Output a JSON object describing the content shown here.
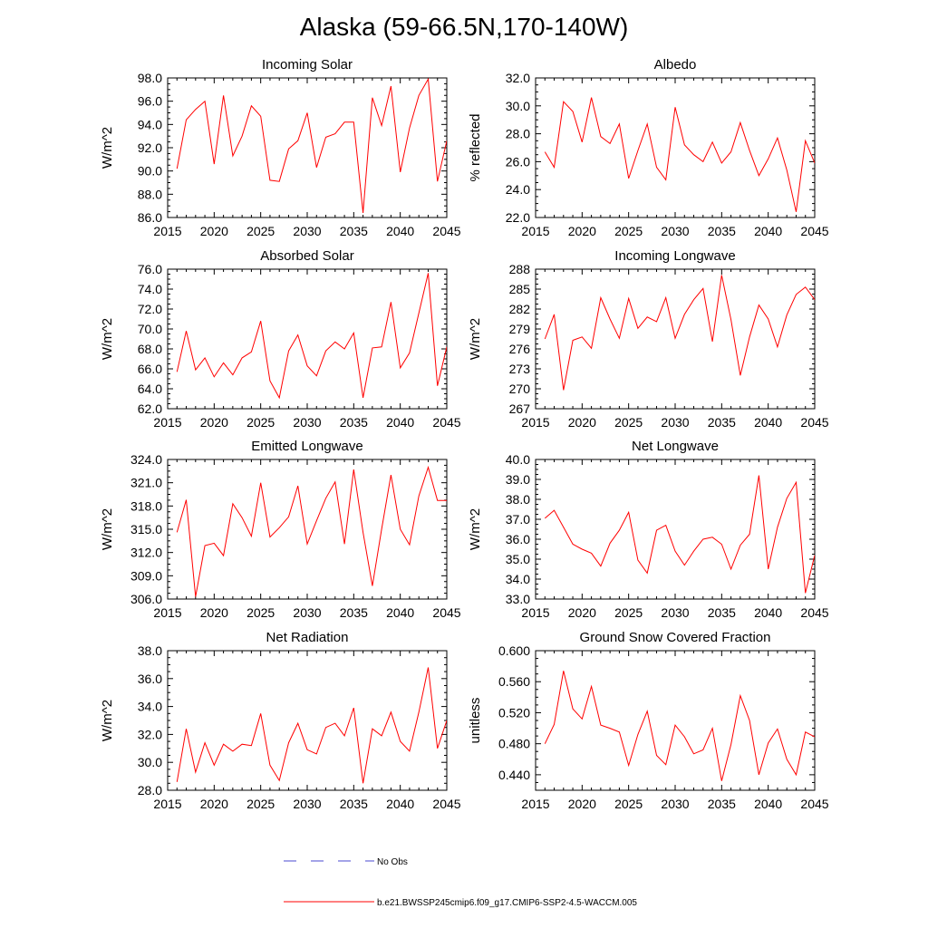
{
  "title": "Alaska (59-66.5N,170-140W)",
  "legend": {
    "obs_label": "No Obs",
    "obs_color": "#4a4ad0",
    "model_label": "b.e21.BWSSP245cmip6.f09_g17.CMIP6-SSP2-4.5-WACCM.005",
    "model_color": "#ff0000"
  },
  "chart_data": [
    {
      "type": "line",
      "title": "Incoming Solar",
      "ylabel": "W/m^2",
      "xlim": [
        2015,
        2045
      ],
      "ylim": [
        86,
        98
      ],
      "yticks": [
        "86.0",
        "88.0",
        "90.0",
        "92.0",
        "94.0",
        "96.0",
        "98.0"
      ],
      "xticks": [
        "2015",
        "2020",
        "2025",
        "2030",
        "2035",
        "2040",
        "2045"
      ],
      "x": [
        2016,
        2017,
        2018,
        2019,
        2020,
        2021,
        2022,
        2023,
        2024,
        2025,
        2026,
        2027,
        2028,
        2029,
        2030,
        2031,
        2032,
        2033,
        2034,
        2035,
        2036,
        2037,
        2038,
        2039,
        2040,
        2041,
        2042,
        2043,
        2044,
        2045
      ],
      "values": [
        90.2,
        94.4,
        95.3,
        96.0,
        90.6,
        96.5,
        91.3,
        93.0,
        95.6,
        94.7,
        89.2,
        89.1,
        91.9,
        92.6,
        95.0,
        90.3,
        92.9,
        93.2,
        94.2,
        94.2,
        86.4,
        96.3,
        93.9,
        97.3,
        89.9,
        93.7,
        96.5,
        97.9,
        89.1,
        92.6
      ]
    },
    {
      "type": "line",
      "title": "Albedo",
      "ylabel": "% reflected",
      "xlim": [
        2015,
        2045
      ],
      "ylim": [
        22,
        32
      ],
      "yticks": [
        "22.0",
        "24.0",
        "26.0",
        "28.0",
        "30.0",
        "32.0"
      ],
      "xticks": [
        "2015",
        "2020",
        "2025",
        "2030",
        "2035",
        "2040",
        "2045"
      ],
      "x": [
        2016,
        2017,
        2018,
        2019,
        2020,
        2021,
        2022,
        2023,
        2024,
        2025,
        2026,
        2027,
        2028,
        2029,
        2030,
        2031,
        2032,
        2033,
        2034,
        2035,
        2036,
        2037,
        2038,
        2039,
        2040,
        2041,
        2042,
        2043,
        2044,
        2045
      ],
      "values": [
        26.7,
        25.6,
        30.3,
        29.6,
        27.4,
        30.6,
        27.8,
        27.3,
        28.7,
        24.8,
        26.8,
        28.7,
        25.6,
        24.7,
        29.9,
        27.2,
        26.5,
        26.0,
        27.4,
        25.9,
        26.7,
        28.8,
        26.8,
        25.0,
        26.2,
        27.7,
        25.4,
        22.4,
        27.5,
        25.9
      ]
    },
    {
      "type": "line",
      "title": "Absorbed Solar",
      "ylabel": "W/m^2",
      "xlim": [
        2015,
        2045
      ],
      "ylim": [
        62,
        76
      ],
      "yticks": [
        "62.0",
        "64.0",
        "66.0",
        "68.0",
        "70.0",
        "72.0",
        "74.0",
        "76.0"
      ],
      "xticks": [
        "2015",
        "2020",
        "2025",
        "2030",
        "2035",
        "2040",
        "2045"
      ],
      "x": [
        2016,
        2017,
        2018,
        2019,
        2020,
        2021,
        2022,
        2023,
        2024,
        2025,
        2026,
        2027,
        2028,
        2029,
        2030,
        2031,
        2032,
        2033,
        2034,
        2035,
        2036,
        2037,
        2038,
        2039,
        2040,
        2041,
        2042,
        2043,
        2044,
        2045
      ],
      "values": [
        65.7,
        69.8,
        65.9,
        67.1,
        65.2,
        66.6,
        65.4,
        67.1,
        67.7,
        70.8,
        64.8,
        63.1,
        67.8,
        69.4,
        66.3,
        65.3,
        67.8,
        68.7,
        68.0,
        69.6,
        63.1,
        68.1,
        68.2,
        72.7,
        66.1,
        67.6,
        71.6,
        75.6,
        64.3,
        68.2
      ]
    },
    {
      "type": "line",
      "title": "Incoming Longwave",
      "ylabel": "W/m^2",
      "xlim": [
        2015,
        2045
      ],
      "ylim": [
        267,
        288
      ],
      "yticks": [
        "267",
        "270",
        "273",
        "276",
        "279",
        "282",
        "285",
        "288"
      ],
      "xticks": [
        "2015",
        "2020",
        "2025",
        "2030",
        "2035",
        "2040",
        "2045"
      ],
      "x": [
        2016,
        2017,
        2018,
        2019,
        2020,
        2021,
        2022,
        2023,
        2024,
        2025,
        2026,
        2027,
        2028,
        2029,
        2030,
        2031,
        2032,
        2033,
        2034,
        2035,
        2036,
        2037,
        2038,
        2039,
        2040,
        2041,
        2042,
        2043,
        2044,
        2045
      ],
      "values": [
        277.5,
        281.2,
        269.8,
        277.3,
        277.8,
        276.1,
        283.7,
        280.5,
        277.6,
        283.6,
        279.1,
        280.8,
        280.1,
        283.7,
        277.6,
        281.2,
        283.4,
        285.1,
        277.1,
        287.1,
        280.4,
        272.0,
        277.8,
        282.6,
        280.5,
        276.3,
        281.1,
        284.2,
        285.3,
        283.4
      ]
    },
    {
      "type": "line",
      "title": "Emitted Longwave",
      "ylabel": "W/m^2",
      "xlim": [
        2015,
        2045
      ],
      "ylim": [
        306,
        324
      ],
      "yticks": [
        "306.0",
        "309.0",
        "312.0",
        "315.0",
        "318.0",
        "321.0",
        "324.0"
      ],
      "xticks": [
        "2015",
        "2020",
        "2025",
        "2030",
        "2035",
        "2040",
        "2045"
      ],
      "x": [
        2016,
        2017,
        2018,
        2019,
        2020,
        2021,
        2022,
        2023,
        2024,
        2025,
        2026,
        2027,
        2028,
        2029,
        2030,
        2031,
        2032,
        2033,
        2034,
        2035,
        2036,
        2037,
        2038,
        2039,
        2040,
        2041,
        2042,
        2043,
        2044,
        2045
      ],
      "values": [
        314.6,
        318.8,
        306.3,
        312.9,
        313.2,
        311.6,
        318.3,
        316.5,
        314.1,
        321.0,
        314.0,
        315.2,
        316.6,
        320.6,
        313.1,
        316.1,
        319.0,
        321.1,
        313.1,
        322.7,
        314.6,
        307.7,
        315.0,
        322.0,
        315.0,
        313.0,
        319.3,
        323.0,
        318.7,
        318.7
      ]
    },
    {
      "type": "line",
      "title": "Net Longwave",
      "ylabel": "W/m^2",
      "xlim": [
        2015,
        2045
      ],
      "ylim": [
        33,
        40
      ],
      "yticks": [
        "33.0",
        "34.0",
        "35.0",
        "36.0",
        "37.0",
        "38.0",
        "39.0",
        "40.0"
      ],
      "xticks": [
        "2015",
        "2020",
        "2025",
        "2030",
        "2035",
        "2040",
        "2045"
      ],
      "x": [
        2016,
        2017,
        2018,
        2019,
        2020,
        2021,
        2022,
        2023,
        2024,
        2025,
        2026,
        2027,
        2028,
        2029,
        2030,
        2031,
        2032,
        2033,
        2034,
        2035,
        2036,
        2037,
        2038,
        2039,
        2040,
        2041,
        2042,
        2043,
        2044,
        2045
      ],
      "values": [
        37.05,
        37.45,
        36.6,
        35.75,
        35.5,
        35.3,
        34.65,
        35.8,
        36.45,
        37.35,
        34.95,
        34.3,
        36.45,
        36.7,
        35.4,
        34.7,
        35.4,
        36.0,
        36.1,
        35.75,
        34.5,
        35.7,
        36.25,
        39.2,
        34.5,
        36.6,
        38.05,
        38.85,
        33.3,
        35.2
      ]
    },
    {
      "type": "line",
      "title": "Net Radiation",
      "ylabel": "W/m^2",
      "xlim": [
        2015,
        2045
      ],
      "ylim": [
        28,
        38
      ],
      "yticks": [
        "28.0",
        "30.0",
        "32.0",
        "34.0",
        "36.0",
        "38.0"
      ],
      "xticks": [
        "2015",
        "2020",
        "2025",
        "2030",
        "2035",
        "2040",
        "2045"
      ],
      "x": [
        2016,
        2017,
        2018,
        2019,
        2020,
        2021,
        2022,
        2023,
        2024,
        2025,
        2026,
        2027,
        2028,
        2029,
        2030,
        2031,
        2032,
        2033,
        2034,
        2035,
        2036,
        2037,
        2038,
        2039,
        2040,
        2041,
        2042,
        2043,
        2044,
        2045
      ],
      "values": [
        28.6,
        32.4,
        29.3,
        31.4,
        29.8,
        31.3,
        30.8,
        31.3,
        31.2,
        33.5,
        29.8,
        28.7,
        31.4,
        32.8,
        30.9,
        30.6,
        32.5,
        32.8,
        31.9,
        33.9,
        28.5,
        32.4,
        31.9,
        33.6,
        31.5,
        30.8,
        33.6,
        36.8,
        31.0,
        33.0
      ]
    },
    {
      "type": "line",
      "title": "Ground Snow Covered Fraction",
      "ylabel": "unitless",
      "xlim": [
        2015,
        2045
      ],
      "ylim": [
        0.42,
        0.6
      ],
      "yticks": [
        "0.440",
        "0.480",
        "0.520",
        "0.560",
        "0.600"
      ],
      "ytick_values": [
        0.44,
        0.48,
        0.52,
        0.56,
        0.6
      ],
      "xticks": [
        "2015",
        "2020",
        "2025",
        "2030",
        "2035",
        "2040",
        "2045"
      ],
      "x": [
        2016,
        2017,
        2018,
        2019,
        2020,
        2021,
        2022,
        2023,
        2024,
        2025,
        2026,
        2027,
        2028,
        2029,
        2030,
        2031,
        2032,
        2033,
        2034,
        2035,
        2036,
        2037,
        2038,
        2039,
        2040,
        2041,
        2042,
        2043,
        2044,
        2045
      ],
      "values": [
        0.48,
        0.505,
        0.574,
        0.525,
        0.512,
        0.554,
        0.504,
        0.5,
        0.495,
        0.452,
        0.492,
        0.522,
        0.465,
        0.453,
        0.504,
        0.489,
        0.467,
        0.472,
        0.5,
        0.432,
        0.479,
        0.542,
        0.51,
        0.44,
        0.481,
        0.499,
        0.46,
        0.44,
        0.495,
        0.489
      ]
    }
  ]
}
